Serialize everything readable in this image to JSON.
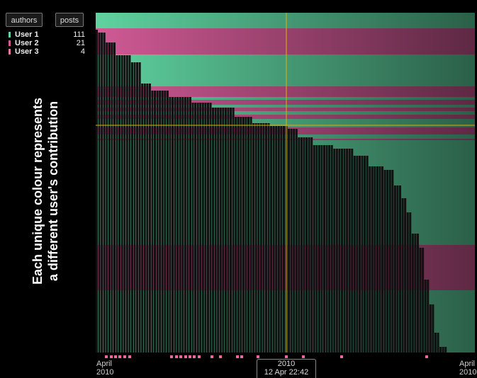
{
  "toolbar": {
    "authors_label": "authors",
    "posts_label": "posts"
  },
  "legend": [
    {
      "name": "User 1",
      "count": "111",
      "color": "#5fd3a0"
    },
    {
      "name": "User 2",
      "count": "21",
      "color": "#d05a95"
    },
    {
      "name": "User 3",
      "count": "4",
      "color": "#e47a9a"
    }
  ],
  "caption": {
    "line1": "Each unique colour represents",
    "line2": "a different user's contribution"
  },
  "axis": {
    "left_month": "April",
    "left_year": "2010",
    "right_month": "April",
    "right_year": "2010"
  },
  "cursor": {
    "year": "2010",
    "datetime": "12 Apr 22:42",
    "color": "#e0b000"
  },
  "colors": {
    "user1": "#5fd3a0",
    "user2": "#d05a95",
    "bar": "#111111",
    "marker": "#e86aa0"
  }
}
